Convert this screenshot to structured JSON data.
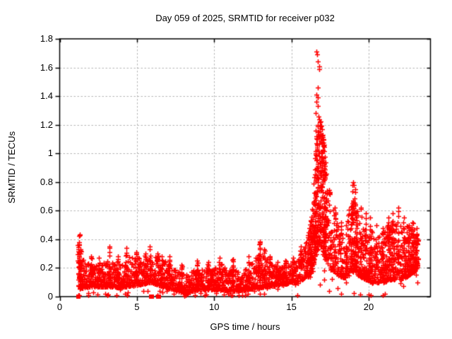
{
  "chart_data": {
    "type": "scatter",
    "title": "Day 059 of 2025, SRMTID for receiver p032",
    "xlabel": "GPS time / hours",
    "ylabel": "SRMTID / TECUs",
    "xlim": [
      0,
      24
    ],
    "ylim": [
      0,
      1.8
    ],
    "xticks": [
      0,
      5,
      10,
      15,
      20
    ],
    "xtick_labels": [
      "0",
      "5",
      "10",
      "15",
      "20"
    ],
    "yticks": [
      0,
      0.2,
      0.4,
      0.6,
      0.8,
      1,
      1.2,
      1.4,
      1.6,
      1.8
    ],
    "ytick_labels": [
      "0",
      "0.2",
      "0.4",
      "0.6",
      "0.8",
      "1",
      "1.2",
      "1.4",
      "1.6",
      "1.8"
    ],
    "grid": true,
    "grid_style": "dashed",
    "legend": null,
    "marker": "plus",
    "marker_color": "#ff0000",
    "grid_color": "#b3b3b3",
    "axis_color": "#000000",
    "background_color": "#ffffff",
    "series": [
      {
        "name": "SRMTID",
        "x_start": 1.17,
        "x_end": 23.2,
        "points_per_hour": 110,
        "seed": 20250059,
        "band_envelope": [
          [
            1.17,
            0.05,
            0.42
          ],
          [
            1.45,
            0.06,
            0.3
          ],
          [
            1.8,
            0.07,
            0.24
          ],
          [
            2.5,
            0.07,
            0.22
          ],
          [
            3.2,
            0.07,
            0.27
          ],
          [
            4.0,
            0.06,
            0.22
          ],
          [
            4.35,
            0.07,
            0.28
          ],
          [
            5.0,
            0.08,
            0.28
          ],
          [
            5.5,
            0.09,
            0.26
          ],
          [
            5.9,
            0.1,
            0.3
          ],
          [
            6.4,
            0.08,
            0.27
          ],
          [
            7.0,
            0.06,
            0.25
          ],
          [
            7.6,
            0.04,
            0.19
          ],
          [
            8.1,
            0.02,
            0.15
          ],
          [
            8.6,
            0.04,
            0.18
          ],
          [
            9.2,
            0.05,
            0.21
          ],
          [
            10.0,
            0.05,
            0.2
          ],
          [
            10.4,
            0.05,
            0.23
          ],
          [
            11.0,
            0.04,
            0.2
          ],
          [
            11.6,
            0.04,
            0.18
          ],
          [
            12.2,
            0.05,
            0.21
          ],
          [
            12.9,
            0.06,
            0.3
          ],
          [
            13.3,
            0.07,
            0.28
          ],
          [
            13.7,
            0.07,
            0.23
          ],
          [
            14.2,
            0.08,
            0.21
          ],
          [
            14.7,
            0.09,
            0.23
          ],
          [
            15.2,
            0.1,
            0.25
          ],
          [
            15.7,
            0.12,
            0.31
          ],
          [
            16.1,
            0.14,
            0.42
          ],
          [
            16.4,
            0.2,
            0.75
          ],
          [
            16.6,
            0.3,
            1.12
          ],
          [
            16.8,
            0.35,
            1.26
          ],
          [
            17.0,
            0.3,
            1.18
          ],
          [
            17.2,
            0.26,
            0.95
          ],
          [
            17.4,
            0.22,
            0.76
          ],
          [
            17.7,
            0.18,
            0.62
          ],
          [
            18.1,
            0.14,
            0.46
          ],
          [
            18.5,
            0.13,
            0.48
          ],
          [
            18.9,
            0.17,
            0.72
          ],
          [
            19.1,
            0.17,
            0.7
          ],
          [
            19.4,
            0.14,
            0.58
          ],
          [
            19.8,
            0.12,
            0.5
          ],
          [
            20.2,
            0.1,
            0.46
          ],
          [
            20.6,
            0.1,
            0.42
          ],
          [
            21.0,
            0.1,
            0.46
          ],
          [
            21.4,
            0.12,
            0.54
          ],
          [
            21.8,
            0.12,
            0.52
          ],
          [
            22.2,
            0.12,
            0.5
          ],
          [
            22.6,
            0.15,
            0.5
          ],
          [
            23.0,
            0.18,
            0.47
          ],
          [
            23.2,
            0.22,
            0.42
          ]
        ],
        "spikes": [
          [
            1.28,
            0.43
          ],
          [
            2.05,
            0.28
          ],
          [
            2.55,
            0.27
          ],
          [
            3.2,
            0.35
          ],
          [
            3.75,
            0.28
          ],
          [
            4.3,
            0.34
          ],
          [
            4.95,
            0.31
          ],
          [
            5.55,
            0.3
          ],
          [
            5.85,
            0.35
          ],
          [
            6.35,
            0.3
          ],
          [
            6.6,
            0.28
          ],
          [
            7.1,
            0.28
          ],
          [
            7.9,
            0.22
          ],
          [
            8.9,
            0.25
          ],
          [
            9.6,
            0.24
          ],
          [
            10.35,
            0.27
          ],
          [
            11.2,
            0.26
          ],
          [
            12.25,
            0.28
          ],
          [
            12.95,
            0.38
          ],
          [
            13.25,
            0.33
          ],
          [
            13.6,
            0.28
          ],
          [
            14.1,
            0.24
          ],
          [
            14.6,
            0.25
          ],
          [
            15.1,
            0.27
          ],
          [
            15.6,
            0.35
          ],
          [
            16.1,
            0.45
          ],
          [
            17.5,
            0.73
          ],
          [
            17.8,
            0.62
          ],
          [
            18.2,
            0.52
          ],
          [
            18.55,
            0.5
          ],
          [
            18.95,
            0.78
          ],
          [
            19.15,
            0.75
          ],
          [
            19.5,
            0.62
          ],
          [
            19.8,
            0.58
          ],
          [
            20.1,
            0.55
          ],
          [
            20.5,
            0.5
          ],
          [
            20.9,
            0.48
          ],
          [
            21.3,
            0.55
          ],
          [
            21.55,
            0.58
          ],
          [
            21.9,
            0.62
          ],
          [
            22.3,
            0.55
          ],
          [
            22.6,
            0.5
          ],
          [
            22.85,
            0.52
          ],
          [
            23.1,
            0.48
          ]
        ],
        "bursts": [
          {
            "x0": 1.17,
            "x1": 1.38,
            "n": 35,
            "y_exp": 1.0
          },
          {
            "x0": 16.1,
            "x1": 16.45,
            "n": 60,
            "y_exp": 1.5
          },
          {
            "x0": 16.45,
            "x1": 17.25,
            "n": 230,
            "y_exp": 1.1
          },
          {
            "x0": 18.85,
            "x1": 19.25,
            "n": 60,
            "y_exp": 1.3
          },
          {
            "x0": 19.5,
            "x1": 20.2,
            "n": 50,
            "y_exp": 2.0
          },
          {
            "x0": 20.8,
            "x1": 21.7,
            "n": 60,
            "y_exp": 1.9
          },
          {
            "x0": 22.4,
            "x1": 23.2,
            "n": 80,
            "y_exp": 1.8
          }
        ],
        "outliers": [
          [
            1.28,
            0.435
          ],
          [
            16.62,
            1.71
          ],
          [
            16.66,
            1.69
          ],
          [
            16.72,
            1.64
          ],
          [
            16.78,
            1.61
          ],
          [
            16.81,
            1.59
          ],
          [
            16.7,
            1.46
          ],
          [
            16.6,
            1.41
          ],
          [
            16.72,
            1.39
          ],
          [
            16.63,
            1.36
          ],
          [
            16.69,
            1.33
          ],
          [
            16.58,
            1.28
          ],
          [
            16.76,
            1.26
          ],
          [
            16.85,
            1.22
          ],
          [
            16.9,
            1.19
          ],
          [
            16.55,
            1.16
          ],
          [
            16.95,
            1.13
          ],
          [
            17.0,
            1.08
          ],
          [
            19.0,
            0.8
          ],
          [
            19.05,
            0.78
          ],
          [
            12.95,
            0.385
          ],
          [
            8.05,
            0.005
          ],
          [
            8.18,
            0.012
          ],
          [
            8.28,
            0.02
          ]
        ],
        "zero_squares": [
          1.21,
          5.92,
          5.97,
          6.36,
          6.41
        ]
      }
    ]
  }
}
